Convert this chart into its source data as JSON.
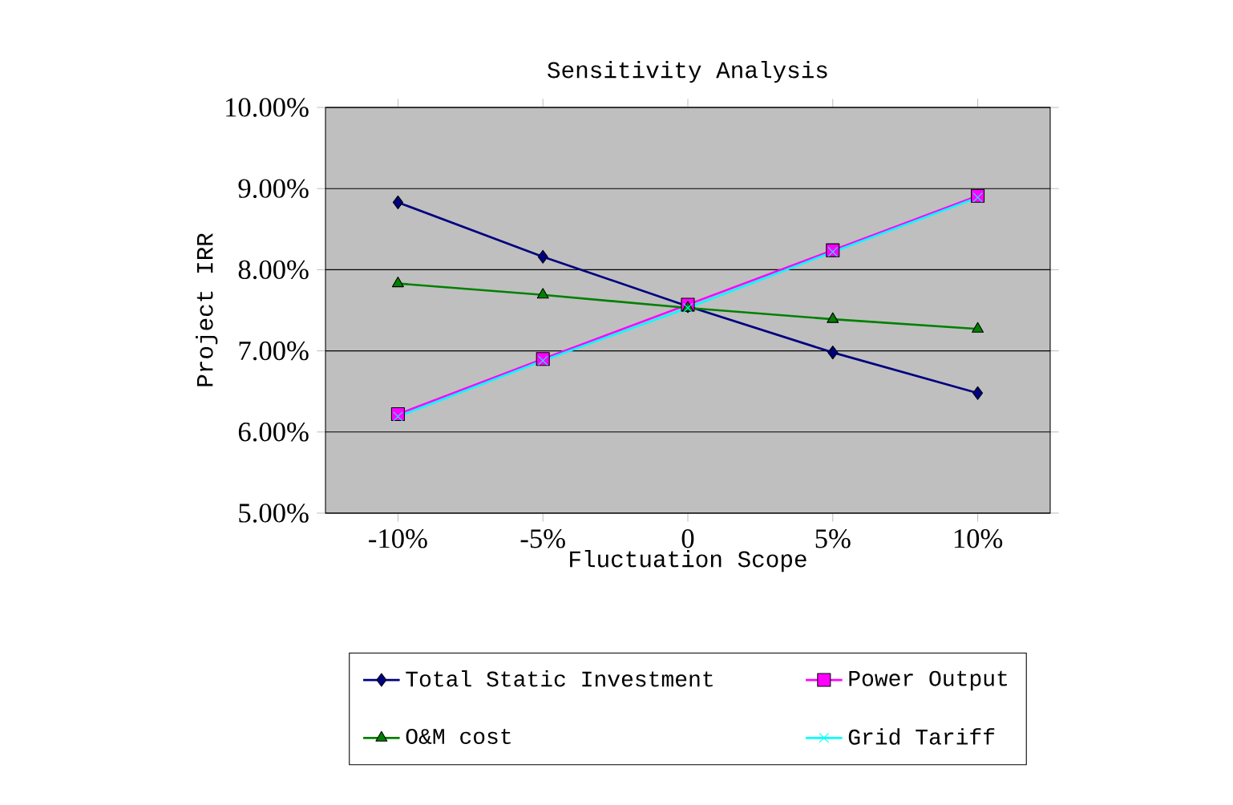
{
  "chart_data": {
    "type": "line",
    "title": "Sensitivity Analysis",
    "xlabel": "Fluctuation Scope",
    "ylabel": "Project IRR",
    "categories": [
      "-10%",
      "-5%",
      "0",
      "5%",
      "10%"
    ],
    "ylim": [
      5,
      10
    ],
    "yticks": [
      {
        "value": 5,
        "label": "5.00%"
      },
      {
        "value": 6,
        "label": "6.00%"
      },
      {
        "value": 7,
        "label": "7.00%"
      },
      {
        "value": 8,
        "label": "8.00%"
      },
      {
        "value": 9,
        "label": "9.00%"
      },
      {
        "value": 10,
        "label": "10.00%"
      }
    ],
    "grid": "y",
    "legend": "bottom",
    "series": [
      {
        "name": "Total Static Investment",
        "color": "#000080",
        "marker": "diamond",
        "values": [
          8.83,
          8.16,
          7.55,
          6.98,
          6.48
        ]
      },
      {
        "name": "Power Output",
        "color": "#ff00ff",
        "marker": "square",
        "values": [
          6.22,
          6.9,
          7.57,
          8.24,
          8.91
        ]
      },
      {
        "name": "O&M cost",
        "color": "#008000",
        "marker": "triangle",
        "values": [
          7.83,
          7.69,
          7.53,
          7.39,
          7.27
        ]
      },
      {
        "name": "Grid Tariff",
        "color": "#00ffff",
        "marker": "cross",
        "values": [
          6.19,
          6.88,
          7.53,
          8.22,
          8.89
        ]
      }
    ]
  }
}
